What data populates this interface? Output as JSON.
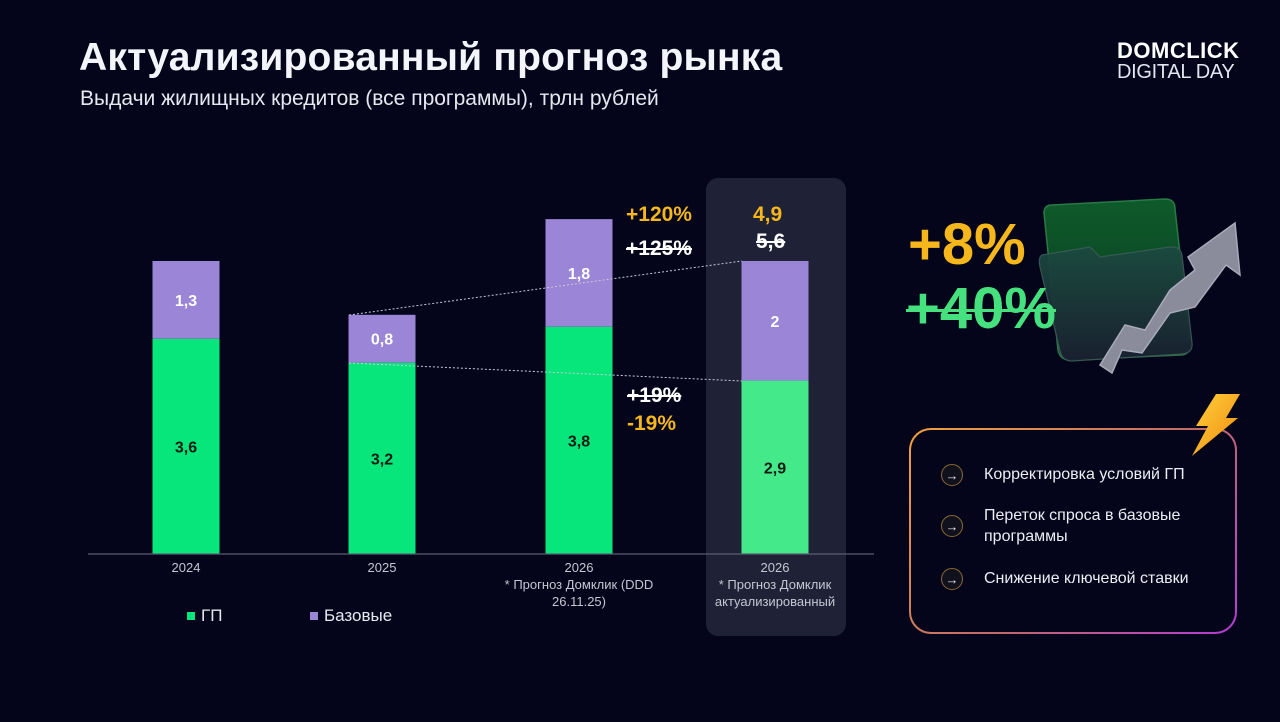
{
  "header": {
    "title": "Актуализированный прогноз рынка",
    "subtitle": "Выдачи жилищных кредитов (все программы), трлн рублей"
  },
  "logo": {
    "line1": "DOMCLICK",
    "line2": "DIGITAL DAY"
  },
  "chart_data": {
    "type": "bar",
    "stacked": true,
    "title": "Актуализированный прогноз рынка",
    "subtitle": "Выдачи жилищных кредитов (все программы), трлн рублей",
    "unit": "трлн рублей",
    "categories": [
      {
        "year": "2024",
        "note": ""
      },
      {
        "year": "2025",
        "note": ""
      },
      {
        "year": "2026",
        "note": "* Прогноз Домклик (DDD 26.11.25)"
      },
      {
        "year": "2026",
        "note": "* Прогноз Домклик актуализированный"
      }
    ],
    "series": [
      {
        "name": "ГП",
        "color": "#06e67a",
        "values": [
          3.6,
          3.2,
          3.8,
          2.9
        ],
        "labels": [
          "3,6",
          "3,2",
          "3,8",
          "2,9"
        ]
      },
      {
        "name": "Базовые",
        "color": "#9b85d6",
        "values": [
          1.3,
          0.8,
          1.8,
          2.0
        ],
        "labels": [
          "1,3",
          "0,8",
          "1,8",
          "2"
        ]
      }
    ],
    "highlight_category_index": 3,
    "ylim": [
      0,
      5.6
    ],
    "grid": false,
    "legend": "bottom-left",
    "annotations": {
      "total_new": "4,9",
      "total_old": "5,6",
      "growth_total_new": "+120%",
      "growth_total_old": "+125%",
      "growth_gp_old": "+19%",
      "growth_gp_new": "-19%"
    }
  },
  "legend": {
    "gp": "ГП",
    "base": "Базовые"
  },
  "side": {
    "new_growth": "+8%",
    "old_growth": "+40%"
  },
  "drivers": {
    "items": [
      "Корректировка условий ГП",
      "Переток спроса в базовые программы",
      "Снижение ключевой ставки"
    ]
  },
  "colors": {
    "background": "#04051a",
    "gp": "#06e67a",
    "gp_highlight": "#44e98a",
    "base": "#9b85d6",
    "accent": "#f5b71c",
    "highlight_panel": "#1f2236"
  }
}
